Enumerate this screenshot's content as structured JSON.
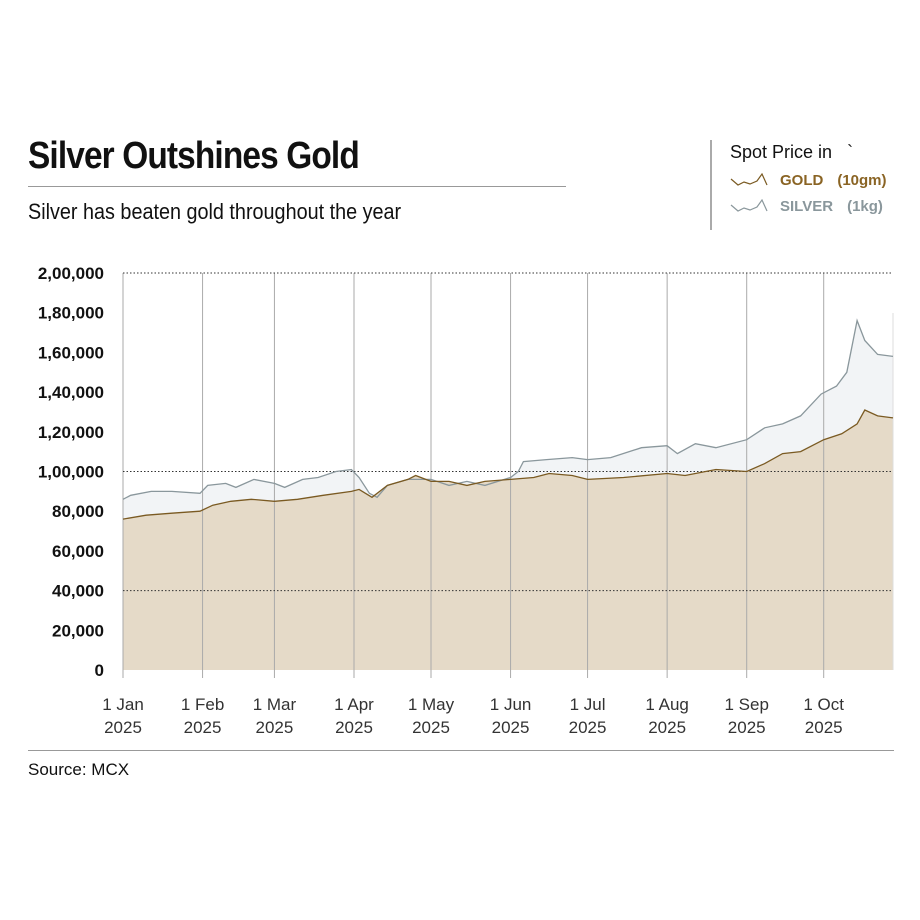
{
  "header": {
    "title": "Silver Outshines Gold",
    "subtitle": "Silver has beaten gold throughout the year"
  },
  "legend": {
    "heading": "Spot Price in",
    "currency_symbol": "`",
    "items": [
      {
        "label": "GOLD",
        "unit": "(10gm)",
        "color": "#8a6424"
      },
      {
        "label": "SILVER",
        "unit": "(1kg)",
        "color": "#8a979c"
      }
    ]
  },
  "footer": {
    "source": "Source: MCX"
  },
  "colors": {
    "gold_line": "#7a5a22",
    "gold_fill": "#e5dac8",
    "silver_line": "#8a979c",
    "silver_fill": "#f2f4f6"
  },
  "chart_data": {
    "type": "area",
    "title": "Silver Outshines Gold",
    "ylim": [
      0,
      200000
    ],
    "xlim": [
      "2025-01-01",
      "2025-10-28"
    ],
    "y_ticks": [
      "0",
      "20,000",
      "40,000",
      "60,000",
      "80,000",
      "1,00,000",
      "1,20,000",
      "1,40,000",
      "1,60,000",
      "1,80,000",
      "2,00,000"
    ],
    "y_tick_values": [
      0,
      20000,
      40000,
      60000,
      80000,
      100000,
      120000,
      140000,
      160000,
      180000,
      200000
    ],
    "dotted_gridlines": [
      40000,
      100000,
      200000
    ],
    "x_ticks": [
      {
        "date": "2025-01-01",
        "l1": "1 Jan",
        "l2": "2025"
      },
      {
        "date": "2025-02-01",
        "l1": "1 Feb",
        "l2": "2025"
      },
      {
        "date": "2025-03-01",
        "l1": "1 Mar",
        "l2": "2025"
      },
      {
        "date": "2025-04-01",
        "l1": "1 Apr",
        "l2": "2025"
      },
      {
        "date": "2025-05-01",
        "l1": "1 May",
        "l2": "2025"
      },
      {
        "date": "2025-06-01",
        "l1": "1 Jun",
        "l2": "2025"
      },
      {
        "date": "2025-07-01",
        "l1": "1 Jul",
        "l2": "2025"
      },
      {
        "date": "2025-08-01",
        "l1": "1 Aug",
        "l2": "2025"
      },
      {
        "date": "2025-09-01",
        "l1": "1 Sep",
        "l2": "2025"
      },
      {
        "date": "2025-10-01",
        "l1": "1 Oct",
        "l2": "2025"
      }
    ],
    "series": [
      {
        "name": "SILVER",
        "dates": [
          "2025-01-01",
          "2025-01-04",
          "2025-01-12",
          "2025-01-20",
          "2025-01-31",
          "2025-02-03",
          "2025-02-10",
          "2025-02-14",
          "2025-02-21",
          "2025-03-01",
          "2025-03-05",
          "2025-03-12",
          "2025-03-18",
          "2025-03-25",
          "2025-03-31",
          "2025-04-03",
          "2025-04-07",
          "2025-04-10",
          "2025-04-14",
          "2025-04-22",
          "2025-05-01",
          "2025-05-08",
          "2025-05-15",
          "2025-05-22",
          "2025-06-01",
          "2025-06-04",
          "2025-06-06",
          "2025-06-15",
          "2025-06-25",
          "2025-07-01",
          "2025-07-10",
          "2025-07-22",
          "2025-08-01",
          "2025-08-05",
          "2025-08-12",
          "2025-08-20",
          "2025-09-01",
          "2025-09-08",
          "2025-09-15",
          "2025-09-22",
          "2025-09-30",
          "2025-10-06",
          "2025-10-10",
          "2025-10-14",
          "2025-10-17",
          "2025-10-22",
          "2025-10-28"
        ],
        "values": [
          86000,
          88000,
          90000,
          90000,
          89000,
          93000,
          94000,
          92000,
          96000,
          94000,
          92000,
          96000,
          97000,
          100000,
          101000,
          97000,
          89000,
          87000,
          93000,
          96000,
          96000,
          93000,
          95000,
          93000,
          97000,
          100000,
          105000,
          106000,
          107000,
          106000,
          107000,
          112000,
          113000,
          109000,
          114000,
          112000,
          116000,
          122000,
          124000,
          128000,
          139000,
          143000,
          150000,
          176000,
          166000,
          159000,
          158000
        ]
      },
      {
        "name": "GOLD",
        "dates": [
          "2025-01-01",
          "2025-01-10",
          "2025-01-20",
          "2025-01-31",
          "2025-02-05",
          "2025-02-12",
          "2025-02-20",
          "2025-03-01",
          "2025-03-10",
          "2025-03-20",
          "2025-03-31",
          "2025-04-03",
          "2025-04-08",
          "2025-04-14",
          "2025-04-22",
          "2025-04-25",
          "2025-05-01",
          "2025-05-08",
          "2025-05-15",
          "2025-05-22",
          "2025-06-01",
          "2025-06-10",
          "2025-06-16",
          "2025-06-25",
          "2025-07-01",
          "2025-07-15",
          "2025-08-01",
          "2025-08-08",
          "2025-08-20",
          "2025-09-01",
          "2025-09-08",
          "2025-09-15",
          "2025-09-22",
          "2025-10-01",
          "2025-10-08",
          "2025-10-14",
          "2025-10-17",
          "2025-10-22",
          "2025-10-28"
        ],
        "values": [
          76000,
          78000,
          79000,
          80000,
          83000,
          85000,
          86000,
          85000,
          86000,
          88000,
          90000,
          91000,
          87000,
          93000,
          96000,
          98000,
          95000,
          95000,
          93000,
          95000,
          96000,
          97000,
          99000,
          98000,
          96000,
          97000,
          99000,
          98000,
          101000,
          100000,
          104000,
          109000,
          110000,
          116000,
          119000,
          124000,
          131000,
          128000,
          127000
        ]
      }
    ]
  }
}
